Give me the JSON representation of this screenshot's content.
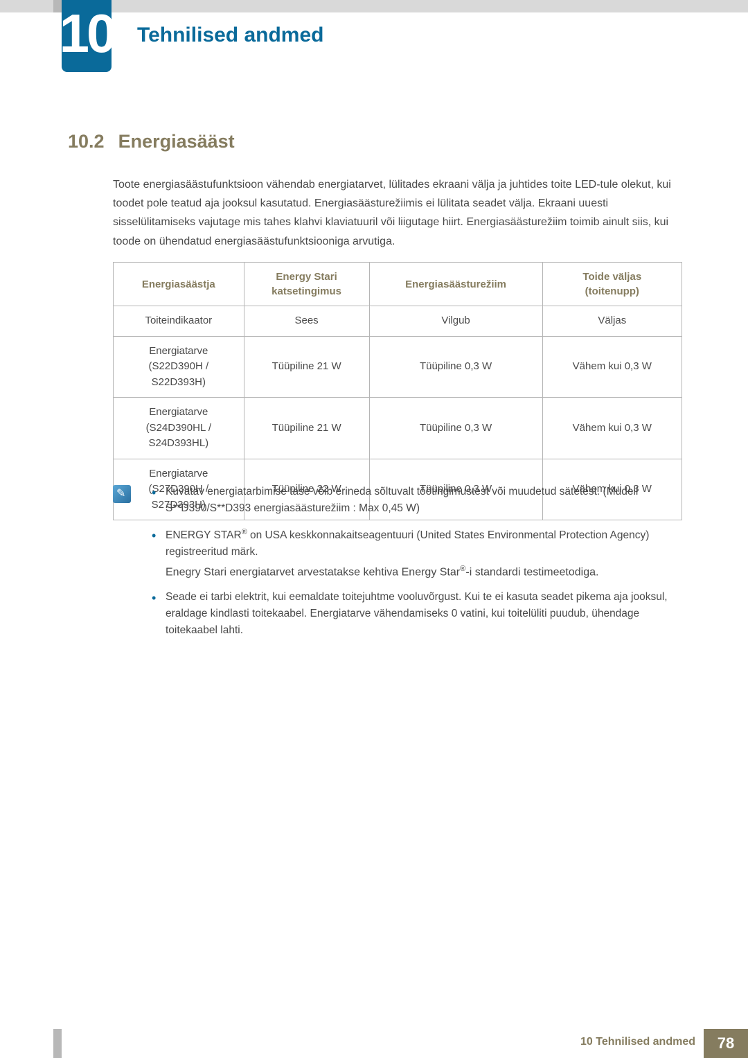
{
  "colors": {
    "accent_blue": "#0a6a9a",
    "accent_olive": "#857c5f",
    "text": "#4a4a4a",
    "table_border": "#b5b5b5",
    "top_bar": "#d9d9d9",
    "side_stripe": "#b8b8b8",
    "white": "#ffffff"
  },
  "typography": {
    "chapter_badge_fontsize": 78,
    "chapter_title_fontsize": 30,
    "section_fontsize": 27,
    "body_fontsize": 16,
    "table_fontsize": 15,
    "note_fontsize": 15.5,
    "footer_label_fontsize": 16,
    "footer_page_fontsize": 22
  },
  "chapter": {
    "number": "10",
    "title": "Tehnilised andmed"
  },
  "section": {
    "number": "10.2",
    "title": "Energiasääst"
  },
  "body": "Toote energiasäästufunktsioon vähendab energiatarvet, lülitades ekraani välja ja juhtides toite LED-tule olekut, kui toodet pole teatud aja jooksul kasutatud. Energiasäästurežiimis ei lülitata seadet välja. Ekraani uuesti sisselülitamiseks vajutage mis tahes klahvi klaviatuuril või liigutage hiirt. Energiasäästurežiim toimib ainult siis, kui toode on ühendatud energiasäästufunktsiooniga arvutiga.",
  "table": {
    "type": "table",
    "column_widths": [
      "25%",
      "25%",
      "25%",
      "25%"
    ],
    "headers": [
      "Energiasäästja",
      "Energy Stari\nkatsetingimus",
      "Energiasäästurežiim",
      "Toide väljas\n(toitenupp)"
    ],
    "rows": [
      [
        "Toiteindikaator",
        "Sees",
        "Vilgub",
        "Väljas"
      ],
      [
        "Energiatarve\n(S22D390H /\nS22D393H)",
        "Tüüpiline 21 W",
        "Tüüpiline 0,3 W",
        "Vähem kui 0,3 W"
      ],
      [
        "Energiatarve\n(S24D390HL /\nS24D393HL)",
        "Tüüpiline 21 W",
        "Tüüpiline 0,3 W",
        "Vähem kui 0,3 W"
      ],
      [
        "Energiatarve\n(S27D390H /\nS27D393H)",
        "Tüüpiline 22 W",
        "Tüüpiline 0,3 W",
        "Vähem kui 0,3 W"
      ]
    ]
  },
  "notes": {
    "items": [
      "Kuvatav energiatarbimise tase võib erineda sõltuvalt töötingimustest või muudetud sätetest. (Mudeli S**D390/S**D393 energiasäästurežiim : Max 0,45 W)",
      "ENERGY STAR® on USA keskkonnakaitseagentuuri (United States Environmental Protection Agency) registreeritud märk.",
      "Seade ei tarbi elektrit, kui eemaldate toitejuhtme vooluvõrgust. Kui te ei kasuta seadet pikema aja jooksul, eraldage kindlasti toitekaabel. Energiatarve vähendamiseks 0 vatini, kui toitelüliti puudub, ühendage toitekaabel lahti."
    ],
    "sub_after_1": "Enegry Stari energiatarvet arvestatakse kehtiva Energy Star®-i standardi testimeetodiga."
  },
  "footer": {
    "label": "10 Tehnilised andmed",
    "page": "78"
  }
}
